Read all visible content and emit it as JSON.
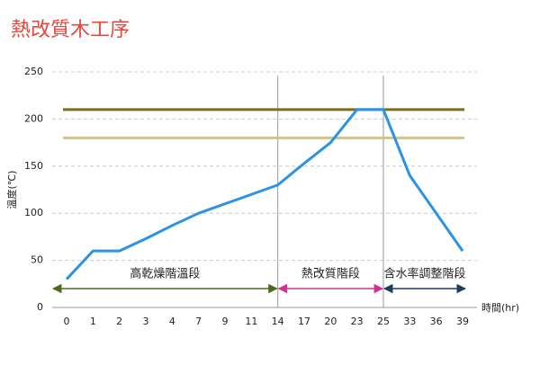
{
  "chart_data": {
    "type": "line",
    "title": "熱改質木工序",
    "y_label": "溫度(℃)",
    "x_label": "時間(hr)",
    "categories": [
      0,
      1,
      2,
      3,
      4,
      7,
      9,
      11,
      14,
      17,
      20,
      23,
      25,
      33,
      36,
      39
    ],
    "series": [
      {
        "color": "#2b93e6",
        "values": [
          30,
          60,
          60,
          73,
          87,
          100,
          110,
          120,
          130,
          153,
          175,
          210,
          210,
          140,
          100,
          60
        ]
      }
    ],
    "reference_lines": [
      {
        "value": 210,
        "color": "#7d6b1f"
      },
      {
        "value": 180,
        "color": "#cfc394"
      }
    ],
    "phases": [
      {
        "label": "高乾燥階溫段",
        "from": 0,
        "to": 14,
        "color": "#4a6a1e"
      },
      {
        "label": "熱改質階段",
        "from": 14,
        "to": 25,
        "color": "#d0338c"
      },
      {
        "label": "含水率調整階段",
        "from": 25,
        "to": 39,
        "color": "#1f3a5f"
      }
    ],
    "ylim": [
      0,
      250
    ],
    "yticks": [
      0,
      50,
      100,
      150,
      200,
      250
    ],
    "grid": true
  }
}
